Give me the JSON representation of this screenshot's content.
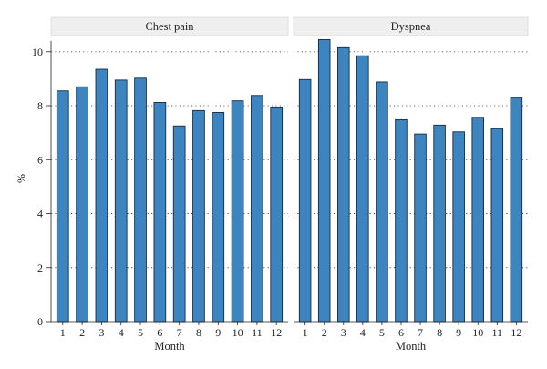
{
  "chart_data": {
    "type": "bar",
    "ylabel": "%",
    "ylim": [
      0,
      10.6
    ],
    "yticks": [
      0,
      2,
      4,
      6,
      8,
      10
    ],
    "grid": true,
    "bar_color": "#3d85c0",
    "panels": [
      {
        "title": "Chest pain",
        "xlabel": "Month",
        "categories": [
          "1",
          "2",
          "3",
          "4",
          "5",
          "6",
          "7",
          "8",
          "9",
          "10",
          "11",
          "12"
        ],
        "values": [
          8.55,
          8.7,
          9.35,
          8.95,
          9.02,
          8.12,
          7.25,
          7.82,
          7.75,
          8.18,
          8.38,
          7.95
        ]
      },
      {
        "title": "Dyspnea",
        "xlabel": "Month",
        "categories": [
          "1",
          "2",
          "3",
          "4",
          "5",
          "6",
          "7",
          "8",
          "9",
          "10",
          "11",
          "12"
        ],
        "values": [
          8.97,
          10.45,
          10.15,
          9.85,
          8.88,
          7.48,
          6.95,
          7.28,
          7.03,
          7.57,
          7.15,
          8.3
        ]
      }
    ]
  }
}
